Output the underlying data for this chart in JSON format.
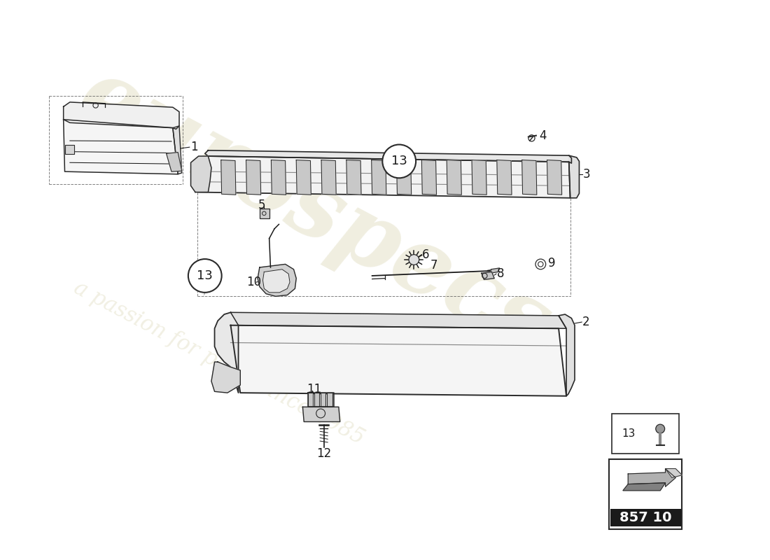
{
  "bg_color": "#ffffff",
  "wm_color1": "#cdc89a",
  "wm_color2": "#cdc89a",
  "label_fontsize": 12,
  "leader_lw": 0.8,
  "part_number": "857 10"
}
